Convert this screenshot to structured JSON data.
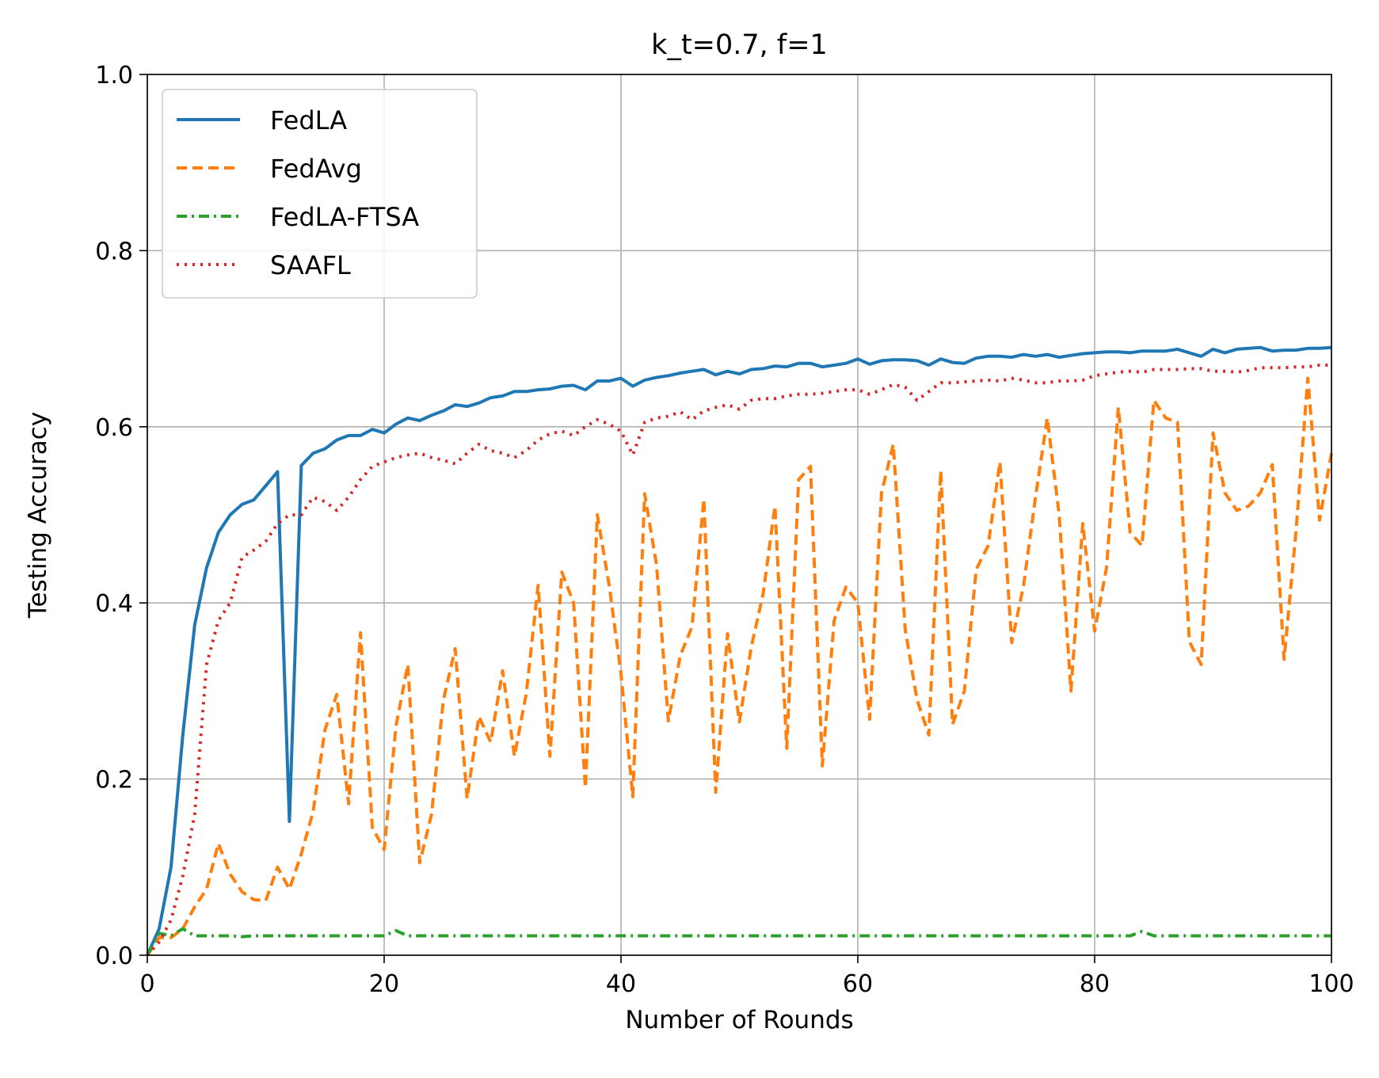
{
  "chart_data": {
    "type": "line",
    "title": "k_t=0.7, f=1",
    "xlabel": "Number of Rounds",
    "ylabel": "Testing Accuracy",
    "xlim": [
      0,
      100
    ],
    "ylim": [
      0,
      1.0
    ],
    "xticks": [
      "0",
      "20",
      "40",
      "60",
      "80",
      "100"
    ],
    "yticks": [
      "0.0",
      "0.2",
      "0.4",
      "0.6",
      "0.8",
      "1.0"
    ],
    "grid": true,
    "legend_position": "upper-left",
    "x": [
      0,
      1,
      2,
      3,
      4,
      5,
      6,
      7,
      8,
      9,
      10,
      11,
      12,
      13,
      14,
      15,
      16,
      17,
      18,
      19,
      20,
      21,
      22,
      23,
      24,
      25,
      26,
      27,
      28,
      29,
      30,
      31,
      32,
      33,
      34,
      35,
      36,
      37,
      38,
      39,
      40,
      41,
      42,
      43,
      44,
      45,
      46,
      47,
      48,
      49,
      50,
      51,
      52,
      53,
      54,
      55,
      56,
      57,
      58,
      59,
      60,
      61,
      62,
      63,
      64,
      65,
      66,
      67,
      68,
      69,
      70,
      71,
      72,
      73,
      74,
      75,
      76,
      77,
      78,
      79,
      80,
      81,
      82,
      83,
      84,
      85,
      86,
      87,
      88,
      89,
      90,
      91,
      92,
      93,
      94,
      95,
      96,
      97,
      98,
      99,
      100
    ],
    "series": [
      {
        "name": "FedLA",
        "color": "#1f77b4",
        "dash": "solid",
        "values": [
          0.0,
          0.03,
          0.1,
          0.25,
          0.375,
          0.44,
          0.48,
          0.5,
          0.512,
          0.517,
          0.533,
          0.549,
          0.152,
          0.556,
          0.57,
          0.575,
          0.585,
          0.59,
          0.59,
          0.597,
          0.593,
          0.603,
          0.61,
          0.607,
          0.613,
          0.618,
          0.625,
          0.623,
          0.627,
          0.633,
          0.635,
          0.64,
          0.64,
          0.642,
          0.643,
          0.646,
          0.647,
          0.642,
          0.652,
          0.652,
          0.655,
          0.646,
          0.653,
          0.656,
          0.658,
          0.661,
          0.663,
          0.665,
          0.659,
          0.663,
          0.66,
          0.665,
          0.666,
          0.669,
          0.668,
          0.672,
          0.672,
          0.668,
          0.67,
          0.672,
          0.677,
          0.671,
          0.675,
          0.676,
          0.676,
          0.675,
          0.67,
          0.677,
          0.673,
          0.672,
          0.678,
          0.68,
          0.68,
          0.679,
          0.682,
          0.68,
          0.682,
          0.679,
          0.681,
          0.683,
          0.684,
          0.685,
          0.685,
          0.684,
          0.686,
          0.686,
          0.686,
          0.688,
          0.684,
          0.68,
          0.688,
          0.684,
          0.688,
          0.689,
          0.69,
          0.686,
          0.687,
          0.687,
          0.689,
          0.689,
          0.69
        ]
      },
      {
        "name": "FedAvg",
        "color": "#ff7f0e",
        "dash": "dashed",
        "values": [
          0.0,
          0.02,
          0.02,
          0.03,
          0.055,
          0.075,
          0.127,
          0.092,
          0.072,
          0.063,
          0.062,
          0.1,
          0.075,
          0.115,
          0.163,
          0.256,
          0.296,
          0.172,
          0.366,
          0.145,
          0.12,
          0.26,
          0.33,
          0.105,
          0.16,
          0.29,
          0.348,
          0.178,
          0.271,
          0.242,
          0.323,
          0.226,
          0.297,
          0.42,
          0.226,
          0.435,
          0.4,
          0.19,
          0.5,
          0.42,
          0.32,
          0.18,
          0.524,
          0.443,
          0.266,
          0.34,
          0.373,
          0.518,
          0.185,
          0.365,
          0.265,
          0.35,
          0.41,
          0.51,
          0.235,
          0.54,
          0.555,
          0.215,
          0.38,
          0.418,
          0.4,
          0.268,
          0.525,
          0.58,
          0.37,
          0.29,
          0.25,
          0.55,
          0.262,
          0.3,
          0.438,
          0.465,
          0.56,
          0.355,
          0.42,
          0.52,
          0.61,
          0.5,
          0.3,
          0.49,
          0.368,
          0.44,
          0.622,
          0.48,
          0.465,
          0.63,
          0.61,
          0.605,
          0.356,
          0.33,
          0.593,
          0.525,
          0.505,
          0.51,
          0.525,
          0.557,
          0.336,
          0.48,
          0.655,
          0.494,
          0.57
        ]
      },
      {
        "name": "FedLA-FTSA",
        "color": "#2ca02c",
        "dash": "dashdot",
        "values": [
          0.0,
          0.025,
          0.022,
          0.03,
          0.022,
          0.022,
          0.022,
          0.022,
          0.021,
          0.022,
          0.022,
          0.022,
          0.022,
          0.022,
          0.022,
          0.022,
          0.022,
          0.022,
          0.022,
          0.022,
          0.022,
          0.028,
          0.022,
          0.022,
          0.022,
          0.022,
          0.022,
          0.022,
          0.022,
          0.022,
          0.022,
          0.022,
          0.022,
          0.022,
          0.022,
          0.022,
          0.022,
          0.022,
          0.022,
          0.022,
          0.022,
          0.022,
          0.022,
          0.022,
          0.022,
          0.022,
          0.022,
          0.022,
          0.022,
          0.022,
          0.022,
          0.022,
          0.022,
          0.022,
          0.022,
          0.022,
          0.022,
          0.022,
          0.022,
          0.022,
          0.022,
          0.022,
          0.022,
          0.022,
          0.022,
          0.022,
          0.022,
          0.022,
          0.022,
          0.022,
          0.022,
          0.022,
          0.022,
          0.022,
          0.022,
          0.022,
          0.022,
          0.022,
          0.022,
          0.022,
          0.022,
          0.022,
          0.022,
          0.022,
          0.027,
          0.022,
          0.022,
          0.022,
          0.022,
          0.022,
          0.022,
          0.022,
          0.022,
          0.022,
          0.022,
          0.022,
          0.022,
          0.022,
          0.022,
          0.022,
          0.022
        ]
      },
      {
        "name": "SAAFL",
        "color": "#d62728",
        "dash": "dotted",
        "values": [
          0.0,
          0.015,
          0.04,
          0.09,
          0.16,
          0.33,
          0.38,
          0.4,
          0.452,
          0.46,
          0.47,
          0.49,
          0.5,
          0.5,
          0.52,
          0.515,
          0.505,
          0.52,
          0.54,
          0.555,
          0.56,
          0.565,
          0.568,
          0.57,
          0.565,
          0.562,
          0.558,
          0.57,
          0.58,
          0.573,
          0.57,
          0.565,
          0.573,
          0.585,
          0.592,
          0.595,
          0.59,
          0.6,
          0.608,
          0.603,
          0.595,
          0.568,
          0.605,
          0.61,
          0.612,
          0.617,
          0.608,
          0.618,
          0.622,
          0.625,
          0.62,
          0.63,
          0.632,
          0.632,
          0.635,
          0.637,
          0.637,
          0.638,
          0.64,
          0.642,
          0.642,
          0.637,
          0.642,
          0.648,
          0.645,
          0.63,
          0.64,
          0.65,
          0.65,
          0.651,
          0.652,
          0.653,
          0.652,
          0.655,
          0.653,
          0.65,
          0.65,
          0.652,
          0.652,
          0.653,
          0.658,
          0.66,
          0.662,
          0.663,
          0.662,
          0.665,
          0.665,
          0.665,
          0.666,
          0.666,
          0.663,
          0.663,
          0.662,
          0.664,
          0.667,
          0.667,
          0.667,
          0.668,
          0.668,
          0.67,
          0.67
        ]
      }
    ]
  }
}
